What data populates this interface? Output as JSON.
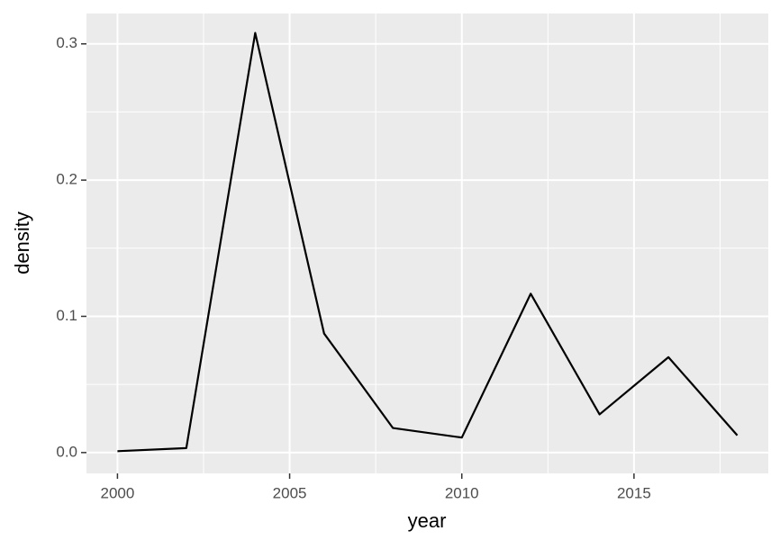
{
  "chart_data": {
    "type": "line",
    "x": [
      2000,
      2002,
      2004,
      2006,
      2008,
      2010,
      2012,
      2014,
      2016,
      2018
    ],
    "series": [
      {
        "color": "#000000",
        "values": [
          0.001,
          0.0033,
          0.308,
          0.0874,
          0.018,
          0.011,
          0.1166,
          0.028,
          0.07,
          0.0126
        ]
      }
    ],
    "xlabel": "year",
    "ylabel": "density",
    "xlim": [
      1999.1,
      2018.9
    ],
    "xticks": [
      2000,
      2005,
      2010,
      2015
    ],
    "ylim": [
      -0.0153,
      0.3223
    ],
    "yticks": [
      {
        "value": 0,
        "label": "0.0"
      },
      0.1,
      0.2,
      0.3
    ],
    "grid": true
  }
}
